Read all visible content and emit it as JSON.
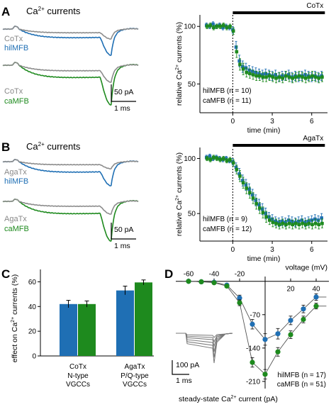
{
  "colors": {
    "gray": "#8c8c8c",
    "blue": "#1f6fb4",
    "green": "#1e8a1e"
  },
  "panels": {
    "A": {
      "letter": "A",
      "title_main": "Ca",
      "title_sup": "2+",
      "title_rest": " currents",
      "trace1_labels": [
        "CoTx",
        "hilMFB"
      ],
      "trace2_labels": [
        "CoTx",
        "caMFB"
      ],
      "scale_pa": "50 pA",
      "scale_ms": "1 ms",
      "drug": "CoTx"
    },
    "B": {
      "letter": "B",
      "title_main": "Ca",
      "title_sup": "2+",
      "title_rest": " currents",
      "trace1_labels": [
        "AgaTx",
        "hilMFB"
      ],
      "trace2_labels": [
        "AgaTx",
        "caMFB"
      ],
      "scale_pa": "50 pA",
      "scale_ms": "1 ms",
      "drug": "AgaTx"
    },
    "C": {
      "letter": "C"
    },
    "D": {
      "letter": "D",
      "scale_pa": "100 pA",
      "scale_ms": "1 ms"
    }
  },
  "chart_data": [
    {
      "id": "A-timecourse",
      "type": "scatter",
      "xlabel": "time (min)",
      "ylabel": "relative Ca2+ currents (%)",
      "ylabel_parts": [
        "relative Ca",
        "2+",
        " currents (%)"
      ],
      "xlim": [
        -2.5,
        7.2
      ],
      "ylim": [
        25,
        110
      ],
      "xticks": [
        0,
        3,
        6
      ],
      "yticks": [
        50,
        100
      ],
      "drug_bar": {
        "label": "CoTx",
        "x_start": 0,
        "x_end": 7
      },
      "series": [
        {
          "name": "hilMFB (n = 10)",
          "color": "#1f6fb4",
          "x": [
            -2,
            -1.75,
            -1.5,
            -1.25,
            -1,
            -0.75,
            -0.5,
            -0.25,
            0,
            0.25,
            0.5,
            0.75,
            1,
            1.25,
            1.5,
            1.75,
            2,
            2.25,
            2.5,
            2.75,
            3,
            3.25,
            3.5,
            3.75,
            4,
            4.25,
            4.5,
            4.75,
            5,
            5.25,
            5.5,
            5.75,
            6,
            6.25,
            6.5,
            6.75
          ],
          "y": [
            101,
            100,
            102,
            100,
            101,
            99,
            100,
            99,
            97,
            82,
            70,
            65,
            64,
            62,
            61,
            60,
            59,
            58,
            59,
            58,
            57,
            58,
            56,
            57,
            57,
            58,
            56,
            57,
            56,
            57,
            58,
            57,
            56,
            57,
            56,
            57
          ],
          "err": [
            2,
            2,
            2,
            2,
            2,
            2,
            2,
            2,
            3,
            5,
            5,
            5,
            4,
            4,
            4,
            4,
            4,
            4,
            4,
            4,
            4,
            4,
            4,
            4,
            4,
            4,
            4,
            4,
            4,
            4,
            4,
            4,
            4,
            4,
            4,
            4
          ]
        },
        {
          "name": "caMFB (n = 11)",
          "color": "#1e8a1e",
          "x": [
            -2,
            -1.75,
            -1.5,
            -1.25,
            -1,
            -0.75,
            -0.5,
            -0.25,
            0,
            0.25,
            0.5,
            0.75,
            1,
            1.25,
            1.5,
            1.75,
            2,
            2.25,
            2.5,
            2.75,
            3,
            3.25,
            3.5,
            3.75,
            4,
            4.25,
            4.5,
            4.75,
            5,
            5.25,
            5.5,
            5.75,
            6,
            6.25,
            6.5,
            6.75
          ],
          "y": [
            100,
            101,
            99,
            100,
            100,
            101,
            99,
            100,
            96,
            78,
            67,
            63,
            60,
            59,
            58,
            57,
            57,
            56,
            56,
            57,
            56,
            55,
            56,
            55,
            57,
            56,
            55,
            56,
            57,
            56,
            55,
            56,
            57,
            56,
            55,
            56
          ],
          "err": [
            2,
            2,
            2,
            2,
            2,
            2,
            2,
            2,
            3,
            5,
            5,
            5,
            4,
            4,
            4,
            4,
            4,
            4,
            4,
            4,
            4,
            4,
            4,
            4,
            4,
            4,
            4,
            4,
            4,
            4,
            4,
            4,
            4,
            4,
            4,
            4
          ]
        }
      ]
    },
    {
      "id": "B-timecourse",
      "type": "scatter",
      "xlabel": "time (min)",
      "ylabel": "relative Ca2+ currents (%)",
      "ylabel_parts": [
        "relative Ca",
        "2+",
        " currents (%)"
      ],
      "xlim": [
        -2.5,
        7.2
      ],
      "ylim": [
        25,
        110
      ],
      "xticks": [
        0,
        3,
        6
      ],
      "yticks": [
        50,
        100
      ],
      "drug_bar": {
        "label": "AgaTx",
        "x_start": 0,
        "x_end": 7
      },
      "series": [
        {
          "name": "hilMFB (n = 9)",
          "color": "#1f6fb4",
          "x": [
            -2,
            -1.75,
            -1.5,
            -1.25,
            -1,
            -0.75,
            -0.5,
            -0.25,
            0,
            0.25,
            0.5,
            0.75,
            1,
            1.25,
            1.5,
            1.75,
            2,
            2.25,
            2.5,
            2.75,
            3,
            3.25,
            3.5,
            3.75,
            4,
            4.25,
            4.5,
            4.75,
            5,
            5.25,
            5.5,
            5.75,
            6,
            6.25,
            6.5,
            6.75
          ],
          "y": [
            101,
            102,
            100,
            101,
            100,
            99,
            100,
            98,
            97,
            92,
            86,
            80,
            76,
            72,
            67,
            62,
            58,
            54,
            50,
            47,
            45,
            43,
            42,
            43,
            42,
            44,
            43,
            42,
            43,
            44,
            42,
            43,
            44,
            45,
            44,
            46
          ],
          "err": [
            2,
            2,
            2,
            2,
            2,
            2,
            2,
            2,
            3,
            4,
            5,
            5,
            5,
            5,
            5,
            5,
            5,
            5,
            5,
            4,
            4,
            4,
            4,
            4,
            4,
            4,
            4,
            4,
            4,
            4,
            4,
            4,
            4,
            4,
            4,
            4
          ]
        },
        {
          "name": "caMFB (n = 12)",
          "color": "#1e8a1e",
          "x": [
            -2,
            -1.75,
            -1.5,
            -1.25,
            -1,
            -0.75,
            -0.5,
            -0.25,
            0,
            0.25,
            0.5,
            0.75,
            1,
            1.25,
            1.5,
            1.75,
            2,
            2.25,
            2.5,
            2.75,
            3,
            3.25,
            3.5,
            3.75,
            4,
            4.25,
            4.5,
            4.75,
            5,
            5.25,
            5.5,
            5.75,
            6,
            6.25,
            6.5,
            6.75
          ],
          "y": [
            100,
            99,
            101,
            100,
            99,
            100,
            98,
            99,
            96,
            90,
            84,
            78,
            73,
            69,
            64,
            59,
            55,
            51,
            47,
            44,
            42,
            41,
            40,
            41,
            40,
            41,
            40,
            41,
            40,
            41,
            40,
            41,
            40,
            41,
            40,
            41
          ],
          "err": [
            2,
            2,
            2,
            2,
            2,
            2,
            2,
            2,
            3,
            4,
            5,
            5,
            5,
            5,
            5,
            5,
            5,
            5,
            5,
            4,
            4,
            4,
            4,
            4,
            4,
            4,
            4,
            4,
            4,
            4,
            4,
            4,
            4,
            4,
            4,
            4
          ]
        }
      ]
    },
    {
      "id": "C-bars",
      "type": "bar",
      "ylabel": "effect on Ca2+ currents (%)",
      "ylabel_parts": [
        "effect on Ca",
        "2+",
        " currents (%)"
      ],
      "ylim": [
        0,
        70
      ],
      "yticks": [
        0,
        20,
        40,
        60
      ],
      "categories": [
        "CoTx",
        "AgaTx"
      ],
      "category_sublabels": [
        [
          "N-type",
          "VGCCs"
        ],
        [
          "P/Q-type",
          "VGCCs"
        ]
      ],
      "series": [
        {
          "name": "hilMFB",
          "color": "#1f6fb4",
          "values": [
            42,
            53
          ],
          "err": [
            3,
            3.5
          ]
        },
        {
          "name": "caMFB",
          "color": "#1e8a1e",
          "values": [
            42,
            59.5
          ],
          "err": [
            2.5,
            2
          ]
        }
      ]
    },
    {
      "id": "D-iv",
      "type": "line",
      "xlabel": "voltage (mV)",
      "ylabel": "steady-state Ca2+ current (pA)",
      "ylabel_parts": [
        "steady-state Ca",
        "2+",
        " current (pA)"
      ],
      "xlim": [
        -70,
        50
      ],
      "ylim": [
        -225,
        10
      ],
      "xticks_top": [
        -60,
        -40,
        -20
      ],
      "xticks_bottom": [
        20,
        40
      ],
      "yticks": [
        -70,
        -140,
        -210
      ],
      "legend": [
        "hilMFB (n = 17)",
        "caMFB (n = 51)"
      ],
      "series": [
        {
          "name": "hilMFB (n = 17)",
          "color": "#1f6fb4",
          "x": [
            -60,
            -50,
            -40,
            -30,
            -20,
            -10,
            0,
            10,
            20,
            30,
            40
          ],
          "y": [
            0,
            -1,
            -2,
            -8,
            -35,
            -90,
            -122,
            -110,
            -82,
            -58,
            -33
          ],
          "err": [
            1,
            1,
            2,
            3,
            6,
            10,
            12,
            11,
            9,
            8,
            7
          ]
        },
        {
          "name": "caMFB (n = 51)",
          "color": "#1e8a1e",
          "x": [
            -60,
            -50,
            -40,
            -30,
            -20,
            -10,
            0,
            10,
            20,
            30,
            40
          ],
          "y": [
            0,
            -1,
            -3,
            -10,
            -45,
            -170,
            -195,
            -148,
            -112,
            -80,
            -52
          ],
          "err": [
            1,
            1,
            2,
            3,
            6,
            10,
            10,
            9,
            8,
            7,
            6
          ]
        }
      ]
    }
  ]
}
